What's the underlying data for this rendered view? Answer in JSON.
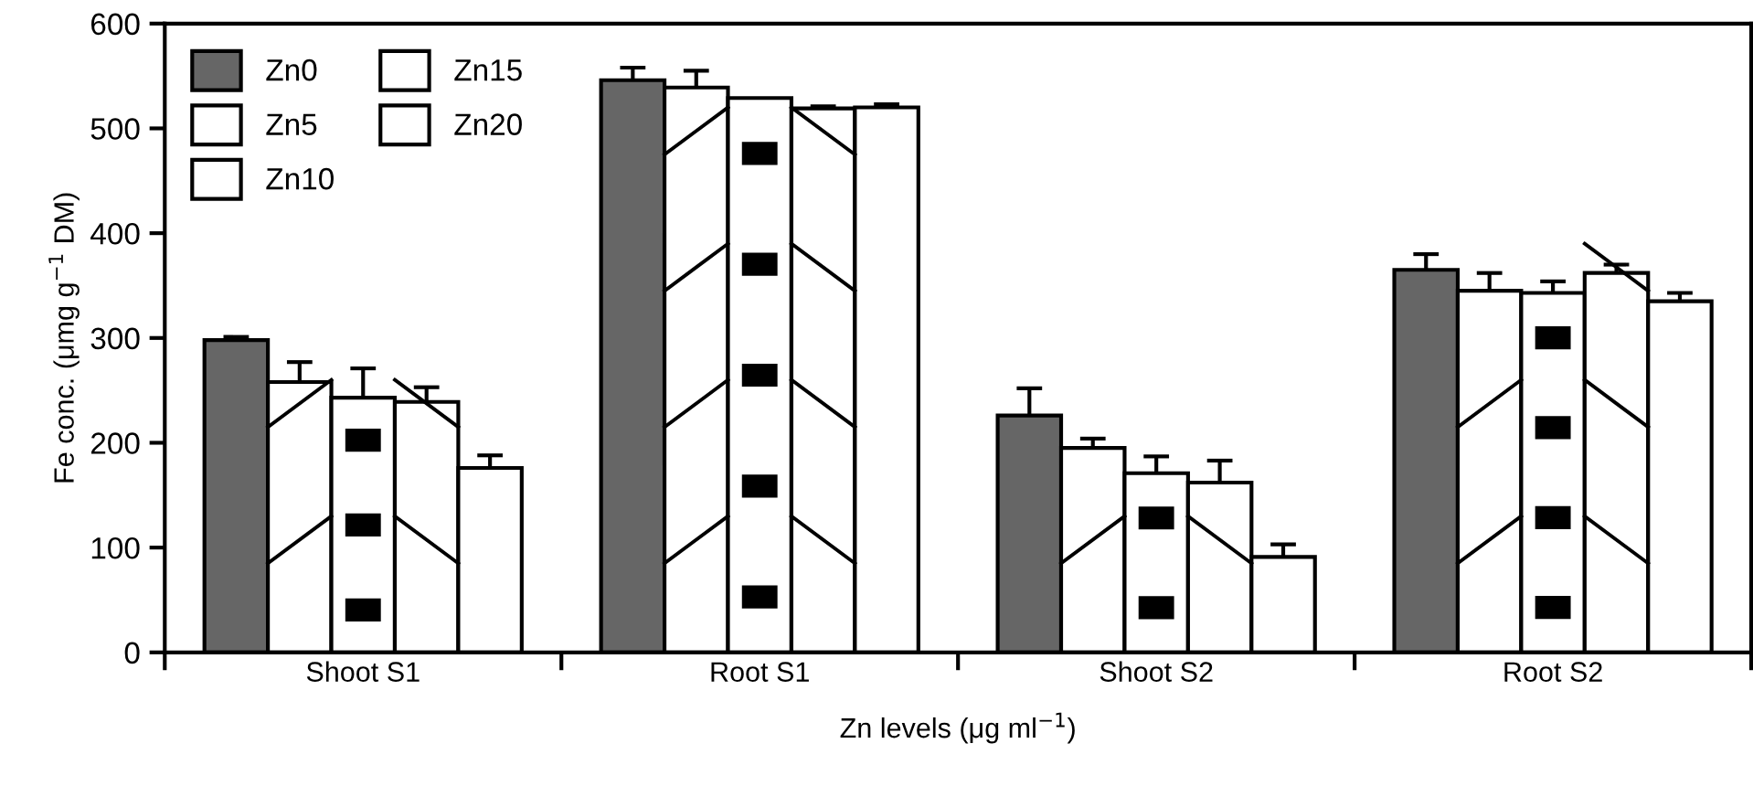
{
  "chart_data": {
    "type": "bar",
    "xlabel": "Zn levels (μg ml$^{−1}$)",
    "ylabel": "Fe conc. (μmg g$^{−1}$ DM)",
    "categories": [
      "Shoot S1",
      "Root S1",
      "Shoot S2",
      "Root S2"
    ],
    "series": [
      {
        "name": "Zn0",
        "color": "#666666",
        "values": [
          298,
          546,
          226,
          365
        ],
        "errors": [
          3,
          12,
          26,
          15
        ]
      },
      {
        "name": "Zn5",
        "color": "#ffffff",
        "values": [
          258,
          539,
          195,
          345
        ],
        "errors": [
          19,
          16,
          9,
          17
        ]
      },
      {
        "name": "Zn10",
        "color": "#ffffff",
        "values": [
          243,
          529,
          171,
          343
        ],
        "errors": [
          28,
          null,
          16,
          11
        ]
      },
      {
        "name": "Zn15",
        "color": "#ffffff",
        "values": [
          239,
          519,
          162,
          362
        ],
        "errors": [
          14,
          2,
          21,
          8
        ]
      },
      {
        "name": "Zn20",
        "color": "#ffffff",
        "values": [
          176,
          520,
          91,
          335
        ],
        "errors": [
          12,
          3,
          12,
          8
        ]
      }
    ],
    "ylim": [
      0,
      600
    ],
    "yticks": [
      0,
      100,
      200,
      300,
      400,
      500,
      600
    ],
    "grid": false,
    "legend": "top left"
  }
}
